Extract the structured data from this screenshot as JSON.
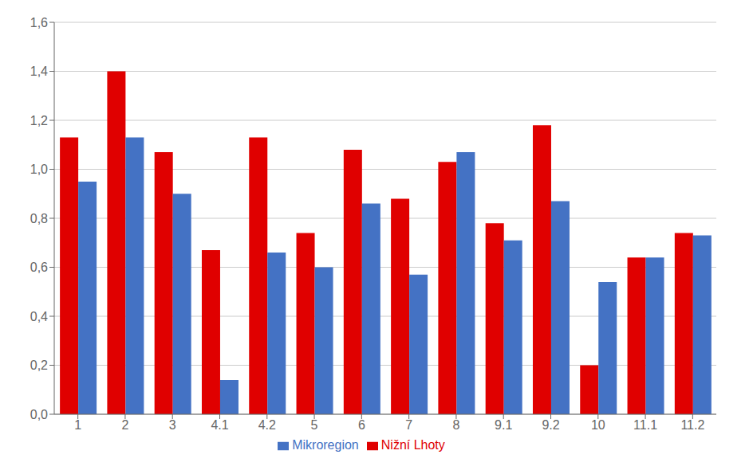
{
  "chart_data": {
    "type": "bar",
    "categories": [
      "1",
      "2",
      "3",
      "4.1",
      "4.2",
      "5",
      "6",
      "7",
      "8",
      "9.1",
      "9.2",
      "10",
      "11.1",
      "11.2"
    ],
    "series": [
      {
        "name": "Nižní Lhoty",
        "color": "#E00000",
        "values": [
          1.13,
          1.4,
          1.07,
          0.67,
          1.13,
          0.74,
          1.08,
          0.88,
          1.03,
          0.78,
          1.18,
          0.2,
          0.64,
          0.74
        ]
      },
      {
        "name": "Mikroregion",
        "color": "#4472C4",
        "values": [
          0.95,
          1.13,
          0.9,
          0.14,
          0.66,
          0.6,
          0.86,
          0.57,
          1.07,
          0.71,
          0.87,
          0.54,
          0.64,
          0.73
        ]
      }
    ],
    "ylim": [
      0,
      1.6
    ],
    "yticks": [
      {
        "value": 0.0,
        "label": "0,0"
      },
      {
        "value": 0.2,
        "label": "0,2"
      },
      {
        "value": 0.4,
        "label": "0,4"
      },
      {
        "value": 0.6,
        "label": "0,6"
      },
      {
        "value": 0.8,
        "label": "0,8"
      },
      {
        "value": 1.0,
        "label": "1,0"
      },
      {
        "value": 1.2,
        "label": "1,2"
      },
      {
        "value": 1.4,
        "label": "1,4"
      },
      {
        "value": 1.6,
        "label": "1,6"
      }
    ],
    "grid": true,
    "legend": "bottom"
  }
}
